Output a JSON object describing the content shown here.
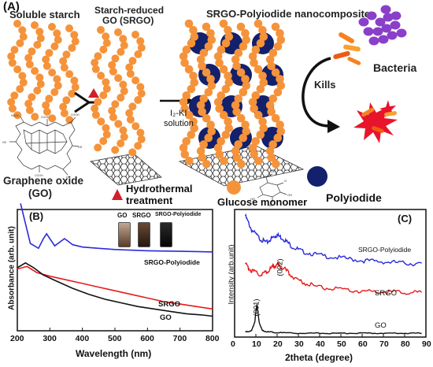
{
  "panel_a": {
    "label": "(A)",
    "soluble_starch": "Soluble starch",
    "srgo_title_1": "Starch-reduced",
    "srgo_title_2": "GO (SRGO)",
    "nanocomposite_title": "SRGO-Polyiodide  nanocomposite",
    "graphene_oxide_1": "Graphene oxide",
    "graphene_oxide_2": "(GO)",
    "reagent_1": "I₂-KI",
    "reagent_2": "solution",
    "kills": "Kills",
    "bacteria": "Bacteria",
    "hydrothermal_1": "Hydrothermal",
    "hydrothermal_2": "treatment",
    "glucose_monomer": "Glucose monomer",
    "polyiodide": "Polyiodide",
    "colors": {
      "starch": "#f5933a",
      "polyiodide": "#13206b",
      "bacteria": "#8a3fc9",
      "burst": "#e8142b",
      "triangle": "#d0202a"
    }
  },
  "panel_b": {
    "label": "(B)",
    "vial_labels": [
      "GO",
      "SRGO",
      "SRGO-Polyiodide"
    ],
    "curve_labels": {
      "srgo_polyiodide": "SRGO-Polyiodide",
      "srgo": "SRGO",
      "go": "GO"
    }
  },
  "panel_c": {
    "label": "(C)",
    "peak_002": "(002)",
    "peak_001": "(001)",
    "curve_labels": {
      "srgo_polyiodide": "SRGO-Polyiodide",
      "srgo": "SRGO",
      "go": "GO"
    }
  },
  "chart_data": [
    {
      "type": "line",
      "xlabel": "Wavelength (nm)",
      "ylabel": "Absorbance (arb. unit)",
      "xlim": [
        200,
        800
      ],
      "xticks": [
        "200",
        "300",
        "400",
        "500",
        "600",
        "700",
        "800"
      ],
      "series": [
        {
          "name": "SRGO-Polyiodide",
          "color": "#2b2bd9",
          "x": [
            210,
            240,
            265,
            280,
            290,
            300,
            315,
            330,
            345,
            355,
            370,
            400,
            450,
            500,
            600,
            700,
            800
          ],
          "y": [
            1.05,
            0.72,
            0.68,
            0.76,
            0.8,
            0.76,
            0.7,
            0.73,
            0.76,
            0.74,
            0.71,
            0.69,
            0.68,
            0.67,
            0.66,
            0.655,
            0.65
          ]
        },
        {
          "name": "SRGO",
          "color": "#e81b1b",
          "x": [
            200,
            230,
            260,
            300,
            350,
            400,
            450,
            500,
            550,
            600,
            650,
            700,
            750,
            800
          ],
          "y": [
            0.51,
            0.53,
            0.48,
            0.45,
            0.42,
            0.39,
            0.36,
            0.33,
            0.3,
            0.27,
            0.24,
            0.22,
            0.2,
            0.18
          ]
        },
        {
          "name": "GO",
          "color": "#111111",
          "x": [
            200,
            225,
            250,
            280,
            320,
            370,
            420,
            470,
            520,
            570,
            620,
            670,
            720,
            770,
            800
          ],
          "y": [
            0.52,
            0.56,
            0.52,
            0.46,
            0.41,
            0.35,
            0.3,
            0.26,
            0.23,
            0.2,
            0.18,
            0.16,
            0.14,
            0.13,
            0.12
          ]
        }
      ]
    },
    {
      "type": "line",
      "xlabel": "2theta (degree)",
      "ylabel": "Intensity (arb.unit)",
      "xlim": [
        0,
        90
      ],
      "xticks": [
        "0",
        "10",
        "20",
        "30",
        "40",
        "50",
        "60",
        "70",
        "80",
        "90"
      ],
      "series": [
        {
          "name": "SRGO-Polyiodide",
          "color": "#2b2bd9",
          "x": [
            5,
            8,
            12,
            15,
            18,
            20,
            23,
            27,
            32,
            40,
            50,
            60,
            70,
            80,
            88
          ],
          "y": [
            0.95,
            0.84,
            0.77,
            0.74,
            0.78,
            0.8,
            0.77,
            0.71,
            0.67,
            0.64,
            0.62,
            0.6,
            0.59,
            0.58,
            0.57
          ]
        },
        {
          "name": "SRGO",
          "color": "#e81b1b",
          "x": [
            5,
            8,
            12,
            15,
            18,
            20,
            23,
            27,
            32,
            40,
            50,
            60,
            70,
            80,
            88
          ],
          "y": [
            0.57,
            0.52,
            0.49,
            0.51,
            0.55,
            0.57,
            0.54,
            0.48,
            0.43,
            0.39,
            0.37,
            0.36,
            0.355,
            0.35,
            0.345
          ]
        },
        {
          "name": "GO",
          "color": "#111111",
          "x": [
            5,
            8,
            9.5,
            10.5,
            11.5,
            13,
            16,
            20,
            30,
            40,
            50,
            60,
            70,
            80,
            88
          ],
          "y": [
            0.04,
            0.05,
            0.12,
            0.26,
            0.12,
            0.05,
            0.04,
            0.035,
            0.03,
            0.03,
            0.03,
            0.03,
            0.03,
            0.03,
            0.03
          ]
        }
      ]
    }
  ]
}
